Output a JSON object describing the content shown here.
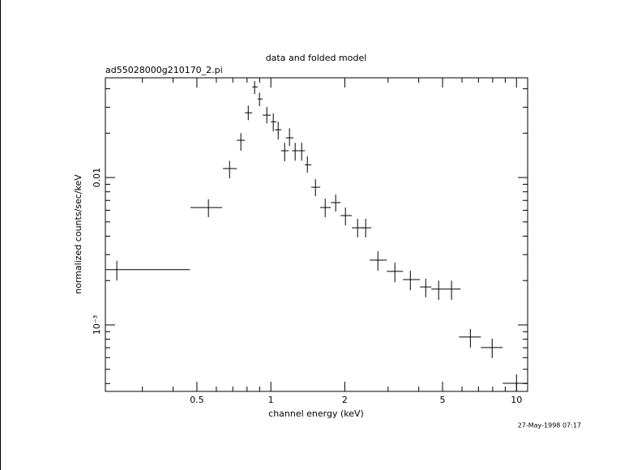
{
  "chart_data": {
    "type": "scatter",
    "title": "data and folded model",
    "subtitle": "ad55028000g210170_2.pi",
    "x_label": "channel energy (keV)",
    "y_label": "normalized counts/sec/keV",
    "timestamp": "27-May-1998 07:17",
    "log_x": true,
    "log_y": true,
    "color": "#000000",
    "xlim": [
      0.212,
      11.1
    ],
    "ylim": [
      0.000354,
      0.0475
    ],
    "xticks": [
      0.5,
      1,
      2,
      5,
      10
    ],
    "xminorticks": [
      0.3,
      0.4,
      0.6,
      0.7,
      0.8,
      0.9,
      3,
      4,
      6,
      7,
      8,
      9
    ],
    "yticks": [
      0.01,
      {
        "value": 0.001,
        "label": "10⁻³"
      }
    ],
    "yminorticks": [
      0.0004,
      0.0005,
      0.0006,
      0.0007,
      0.0008,
      0.0009,
      0.002,
      0.003,
      0.004,
      0.005,
      0.006,
      0.007,
      0.008,
      0.009,
      0.02,
      0.03,
      0.04
    ],
    "series": [
      {
        "x": [
          0.236,
          0.557,
          0.679,
          0.755,
          0.809,
          0.859,
          0.899,
          0.963,
          1.023,
          1.071,
          1.138,
          1.191,
          1.256,
          1.335,
          1.408,
          1.519,
          1.664,
          1.836,
          2.012,
          2.255,
          2.432,
          2.727,
          3.198,
          3.697,
          4.27,
          4.82,
          5.44,
          6.49,
          7.96,
          10.0
        ],
        "x_lo": [
          0.212,
          0.471,
          0.638,
          0.727,
          0.784,
          0.84,
          0.885,
          0.927,
          1.0,
          1.039,
          1.1,
          1.15,
          1.218,
          1.295,
          1.376,
          1.462,
          1.589,
          1.755,
          1.922,
          2.138,
          2.324,
          2.527,
          2.965,
          3.451,
          4.05,
          4.5,
          5.16,
          5.83,
          7.16,
          8.79
        ],
        "x_hi": [
          0.468,
          0.634,
          0.727,
          0.784,
          0.84,
          0.885,
          0.927,
          1.0,
          1.054,
          1.104,
          1.182,
          1.237,
          1.295,
          1.376,
          1.462,
          1.589,
          1.755,
          1.922,
          2.138,
          2.397,
          2.566,
          2.965,
          3.451,
          4.05,
          4.5,
          5.16,
          5.92,
          7.16,
          8.79,
          11.1
        ],
        "y": [
          0.00237,
          0.00626,
          0.0115,
          0.0179,
          0.0275,
          0.0412,
          0.0341,
          0.0265,
          0.0239,
          0.0211,
          0.0152,
          0.0186,
          0.0152,
          0.0152,
          0.0122,
          0.00859,
          0.00626,
          0.00676,
          0.00552,
          0.00456,
          0.00456,
          0.00275,
          0.00231,
          0.00203,
          0.00181,
          0.00175,
          0.00175,
          0.000828,
          0.000702,
          0.000402
        ],
        "y_lo": [
          0.002,
          0.00538,
          0.00989,
          0.0152,
          0.0245,
          0.0368,
          0.0305,
          0.0233,
          0.0206,
          0.0181,
          0.0129,
          0.0164,
          0.013,
          0.013,
          0.0108,
          0.00748,
          0.00538,
          0.00588,
          0.00474,
          0.00392,
          0.00392,
          0.00233,
          0.00195,
          0.00172,
          0.00154,
          0.00148,
          0.00148,
          0.000702,
          0.000596,
          0.00035
        ],
        "y_hi": [
          0.00272,
          0.00711,
          0.013,
          0.02,
          0.0308,
          0.0451,
          0.0377,
          0.0301,
          0.0272,
          0.0239,
          0.0172,
          0.0216,
          0.0172,
          0.0172,
          0.0139,
          0.00975,
          0.00719,
          0.00767,
          0.00626,
          0.00525,
          0.00525,
          0.00316,
          0.00265,
          0.00233,
          0.00206,
          0.002,
          0.002,
          0.000939,
          0.000807,
          0.000462
        ]
      }
    ]
  }
}
